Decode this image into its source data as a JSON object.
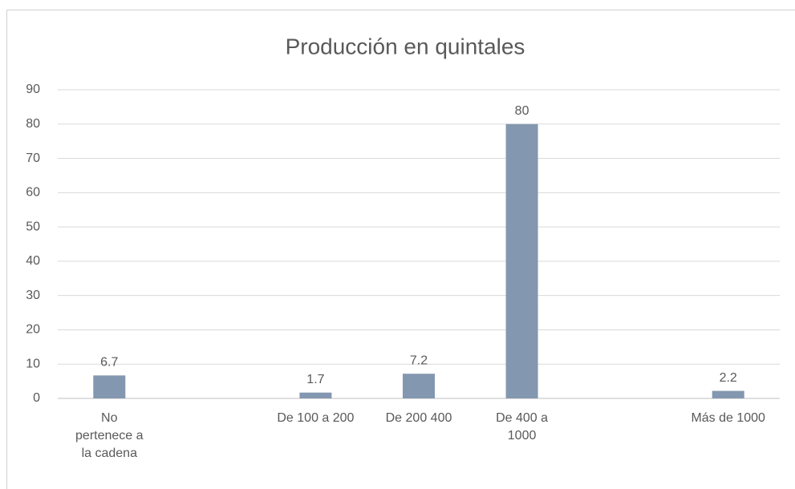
{
  "chart_data": {
    "type": "bar",
    "title": "Producción en quintales",
    "categories": [
      "No\npertenece a\nla cadena",
      null,
      "De 100 a 200",
      "De 200 400",
      "De 400 a\n1000",
      null,
      "Más de 1000"
    ],
    "values": [
      6.7,
      null,
      1.7,
      7.2,
      80,
      null,
      2.2
    ],
    "color": "#8497b0",
    "ylim": [
      0,
      90
    ],
    "yticks": [
      0,
      10,
      20,
      30,
      40,
      50,
      60,
      70,
      80,
      90
    ],
    "grid": true
  }
}
